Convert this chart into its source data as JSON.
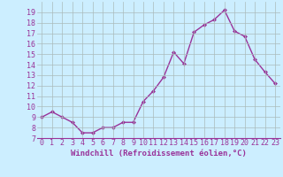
{
  "x": [
    0,
    1,
    2,
    3,
    4,
    5,
    6,
    7,
    8,
    9,
    10,
    11,
    12,
    13,
    14,
    15,
    16,
    17,
    18,
    19,
    20,
    21,
    22,
    23
  ],
  "y": [
    9,
    9.5,
    9,
    8.5,
    7.5,
    7.5,
    8,
    8,
    8.5,
    8.5,
    10.5,
    11.5,
    12.8,
    15.2,
    14.1,
    17.1,
    17.8,
    18.3,
    19.2,
    17.2,
    16.7,
    14.5,
    13.3,
    12.2
  ],
  "line_color": "#993399",
  "marker": "D",
  "marker_size": 2.0,
  "line_width": 1.0,
  "bg_color": "#cceeff",
  "grid_color": "#aabbbb",
  "xlabel": "Windchill (Refroidissement éolien,°C)",
  "xlabel_fontsize": 6.5,
  "tick_fontsize": 6.0,
  "ylim": [
    7,
    20
  ],
  "xlim": [
    -0.5,
    23.5
  ],
  "yticks": [
    7,
    8,
    9,
    10,
    11,
    12,
    13,
    14,
    15,
    16,
    17,
    18,
    19
  ],
  "xticks": [
    0,
    1,
    2,
    3,
    4,
    5,
    6,
    7,
    8,
    9,
    10,
    11,
    12,
    13,
    14,
    15,
    16,
    17,
    18,
    19,
    20,
    21,
    22,
    23
  ]
}
